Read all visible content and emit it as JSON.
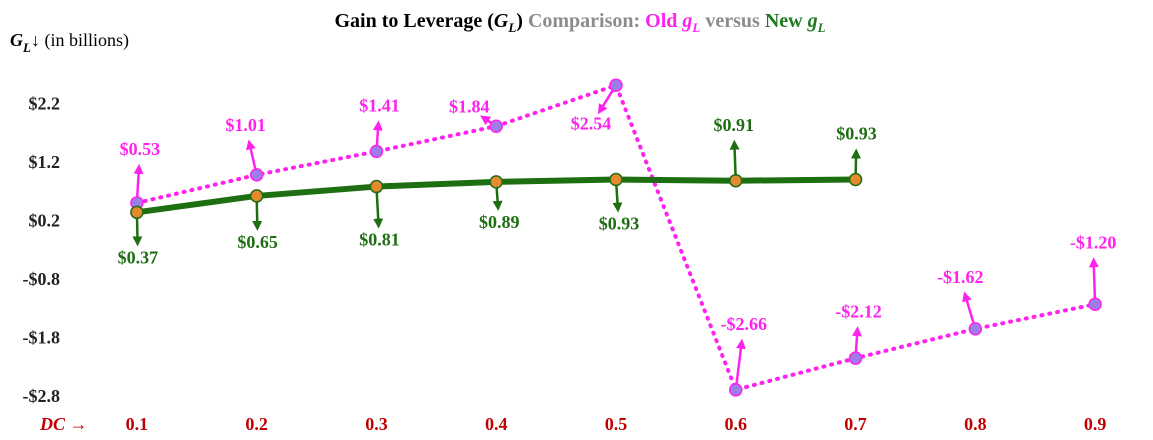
{
  "chart_data": {
    "type": "line",
    "title": [
      "Gain to Leverage (",
      "G",
      "L",
      ")",
      " Comparison: ",
      "Old ",
      "g",
      "L",
      " versus ",
      "New ",
      "g",
      "L"
    ],
    "y_label": [
      "G",
      "L",
      "↓ (in billions)"
    ],
    "x_label": "DC →",
    "x": [
      0.1,
      0.2,
      0.3,
      0.4,
      0.5,
      0.6,
      0.7,
      0.8,
      0.9
    ],
    "xlim": [
      0.06,
      0.94
    ],
    "xticks": [
      0.1,
      0.2,
      0.3,
      0.4,
      0.5,
      0.6,
      0.7,
      0.8,
      0.9
    ],
    "ylim": [
      -2.8,
      2.8
    ],
    "yticks": [
      {
        "value": -2.8,
        "label": "-$2.8"
      },
      {
        "value": -1.8,
        "label": "-$1.8"
      },
      {
        "value": -0.8,
        "label": "-$0.8"
      },
      {
        "value": 0.2,
        "label": "$0.2"
      },
      {
        "value": 1.2,
        "label": "$1.2"
      },
      {
        "value": 2.2,
        "label": "$2.2"
      }
    ],
    "grid": false,
    "series": [
      {
        "name": "Old",
        "color": "#ff22ee",
        "marker_color": "#9b7fe6",
        "dash": "dotted",
        "values": [
          0.53,
          1.01,
          1.41,
          1.84,
          2.54,
          -2.66,
          -2.12,
          -1.62,
          -1.2
        ],
        "value_labels": [
          "$0.53",
          "$1.01",
          "$1.41",
          "$1.84",
          "$2.54",
          "-$2.66",
          "-$2.12",
          "-$1.62",
          "-$1.20"
        ]
      },
      {
        "name": "New",
        "color": "#1e6e12",
        "marker_color": "#e58a2e",
        "dash": "solid",
        "values": [
          0.37,
          0.65,
          0.81,
          0.89,
          0.93,
          0.91,
          0.93,
          null,
          null
        ],
        "value_labels": [
          "$0.37",
          "$0.65",
          "$0.81",
          "$0.89",
          "$0.93",
          "$0.91",
          "$0.93",
          null,
          null
        ]
      }
    ]
  }
}
